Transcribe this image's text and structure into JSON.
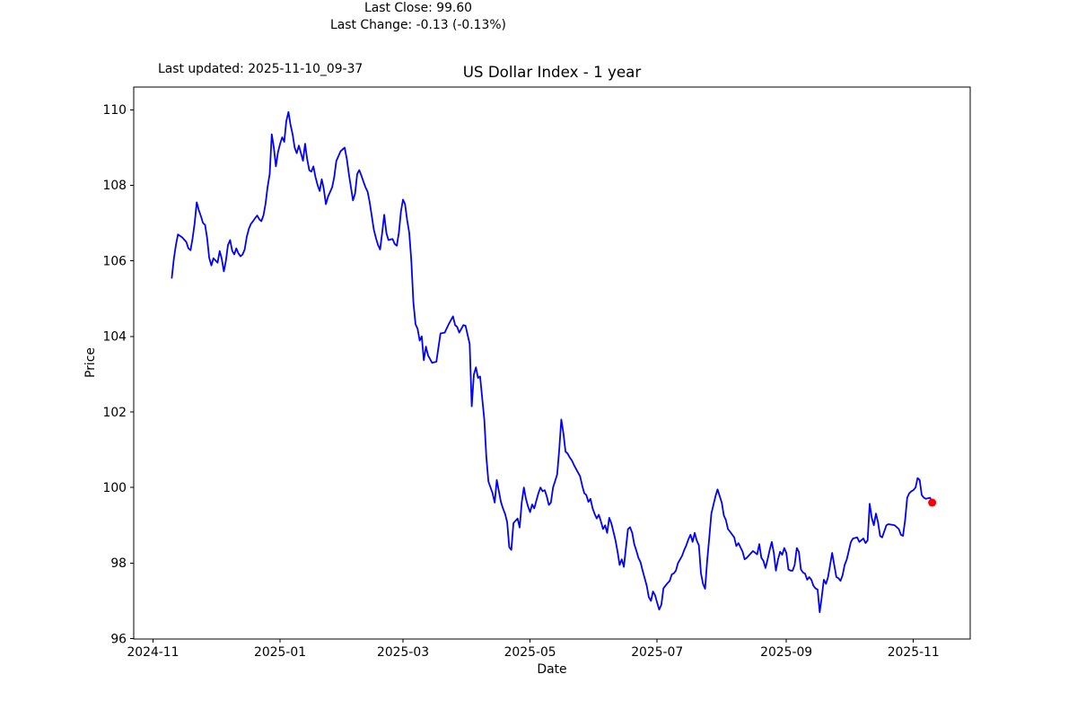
{
  "figure": {
    "last_updated": "Last updated: 2025-11-10_09-37",
    "title": "US Dollar Index - 1 year",
    "annotation_line1": "Last Close: 99.60",
    "annotation_line2": "Last Change: -0.13 (-0.13%)"
  },
  "chart_data": {
    "type": "line",
    "title": "US Dollar Index - 1 year",
    "xlabel": "Date",
    "ylabel": "Price",
    "last_close": 99.6,
    "last_change_text": "-0.13 (-0.13%)",
    "line_color": "#0000ff",
    "marker_color": "#ff0000",
    "axis_color": "#000000",
    "grid": false,
    "start_date": "2024-11-10",
    "x_unit": "days_since_start_date",
    "xlim_days": [
      -18.25,
      383.25
    ],
    "ylim": [
      95.99,
      110.6
    ],
    "yticks": [
      96,
      98,
      100,
      102,
      104,
      106,
      108,
      110
    ],
    "xticks": [
      {
        "day": -9,
        "label": "2024-11"
      },
      {
        "day": 52,
        "label": "2025-01"
      },
      {
        "day": 111,
        "label": "2025-03"
      },
      {
        "day": 172,
        "label": "2025-05"
      },
      {
        "day": 233,
        "label": "2025-07"
      },
      {
        "day": 295,
        "label": "2025-09"
      },
      {
        "day": 356,
        "label": "2025-11"
      }
    ],
    "points": [
      [
        0,
        105.55
      ],
      [
        1,
        106.05
      ],
      [
        2,
        106.42
      ],
      [
        3,
        106.7
      ],
      [
        5,
        106.62
      ],
      [
        7,
        106.5
      ],
      [
        8,
        106.33
      ],
      [
        9,
        106.28
      ],
      [
        10,
        106.6
      ],
      [
        11,
        107.0
      ],
      [
        12,
        107.55
      ],
      [
        13,
        107.34
      ],
      [
        14,
        107.18
      ],
      [
        15,
        107.0
      ],
      [
        16,
        106.95
      ],
      [
        17,
        106.6
      ],
      [
        18,
        106.08
      ],
      [
        19,
        105.88
      ],
      [
        20,
        106.07
      ],
      [
        22,
        105.95
      ],
      [
        23,
        106.26
      ],
      [
        24,
        106.05
      ],
      [
        25,
        105.72
      ],
      [
        26,
        106.0
      ],
      [
        27,
        106.42
      ],
      [
        28,
        106.55
      ],
      [
        29,
        106.27
      ],
      [
        30,
        106.17
      ],
      [
        31,
        106.33
      ],
      [
        32,
        106.2
      ],
      [
        33,
        106.12
      ],
      [
        34,
        106.17
      ],
      [
        35,
        106.3
      ],
      [
        36,
        106.63
      ],
      [
        37,
        106.85
      ],
      [
        38,
        106.98
      ],
      [
        39,
        107.05
      ],
      [
        41,
        107.2
      ],
      [
        42,
        107.1
      ],
      [
        43,
        107.05
      ],
      [
        44,
        107.2
      ],
      [
        45,
        107.5
      ],
      [
        46,
        107.95
      ],
      [
        47,
        108.3
      ],
      [
        48,
        109.35
      ],
      [
        49,
        109.0
      ],
      [
        50,
        108.5
      ],
      [
        51,
        108.87
      ],
      [
        52,
        109.1
      ],
      [
        53,
        109.27
      ],
      [
        54,
        109.15
      ],
      [
        55,
        109.7
      ],
      [
        56,
        109.94
      ],
      [
        57,
        109.6
      ],
      [
        58,
        109.35
      ],
      [
        59,
        109.0
      ],
      [
        60,
        108.85
      ],
      [
        61,
        109.05
      ],
      [
        62,
        108.85
      ],
      [
        63,
        108.65
      ],
      [
        64,
        109.1
      ],
      [
        65,
        108.7
      ],
      [
        66,
        108.4
      ],
      [
        67,
        108.36
      ],
      [
        68,
        108.5
      ],
      [
        69,
        108.22
      ],
      [
        70,
        108.0
      ],
      [
        71,
        107.85
      ],
      [
        72,
        108.16
      ],
      [
        73,
        107.9
      ],
      [
        74,
        107.5
      ],
      [
        75,
        107.7
      ],
      [
        77,
        107.95
      ],
      [
        78,
        108.22
      ],
      [
        79,
        108.64
      ],
      [
        81,
        108.9
      ],
      [
        83,
        109.0
      ],
      [
        84,
        108.7
      ],
      [
        85,
        108.3
      ],
      [
        86,
        107.95
      ],
      [
        87,
        107.6
      ],
      [
        88,
        107.78
      ],
      [
        89,
        108.3
      ],
      [
        90,
        108.4
      ],
      [
        91,
        108.26
      ],
      [
        92,
        108.1
      ],
      [
        93,
        107.95
      ],
      [
        94,
        107.83
      ],
      [
        95,
        107.55
      ],
      [
        97,
        106.83
      ],
      [
        98,
        106.6
      ],
      [
        99,
        106.42
      ],
      [
        100,
        106.3
      ],
      [
        101,
        106.74
      ],
      [
        102,
        107.22
      ],
      [
        103,
        106.74
      ],
      [
        104,
        106.55
      ],
      [
        106,
        106.58
      ],
      [
        107,
        106.45
      ],
      [
        108,
        106.4
      ],
      [
        109,
        106.74
      ],
      [
        110,
        107.3
      ],
      [
        111,
        107.62
      ],
      [
        112,
        107.5
      ],
      [
        113,
        107.07
      ],
      [
        114,
        106.74
      ],
      [
        115,
        106.0
      ],
      [
        116,
        104.9
      ],
      [
        117,
        104.32
      ],
      [
        118,
        104.2
      ],
      [
        119,
        103.89
      ],
      [
        120,
        104.0
      ],
      [
        121,
        103.37
      ],
      [
        122,
        103.73
      ],
      [
        123,
        103.5
      ],
      [
        125,
        103.3
      ],
      [
        127,
        103.33
      ],
      [
        129,
        104.08
      ],
      [
        131,
        104.1
      ],
      [
        133,
        104.33
      ],
      [
        135,
        104.53
      ],
      [
        136,
        104.3
      ],
      [
        137,
        104.25
      ],
      [
        138,
        104.1
      ],
      [
        140,
        104.3
      ],
      [
        141,
        104.28
      ],
      [
        143,
        103.8
      ],
      [
        144,
        102.15
      ],
      [
        145,
        102.99
      ],
      [
        146,
        103.18
      ],
      [
        147,
        102.9
      ],
      [
        148,
        102.94
      ],
      [
        150,
        101.8
      ],
      [
        151,
        100.8
      ],
      [
        152,
        100.16
      ],
      [
        154,
        99.85
      ],
      [
        155,
        99.6
      ],
      [
        156,
        100.2
      ],
      [
        158,
        99.62
      ],
      [
        159,
        99.45
      ],
      [
        160,
        99.3
      ],
      [
        161,
        99.08
      ],
      [
        162,
        98.42
      ],
      [
        163,
        98.35
      ],
      [
        164,
        99.06
      ],
      [
        166,
        99.18
      ],
      [
        167,
        98.94
      ],
      [
        168,
        99.6
      ],
      [
        169,
        100.0
      ],
      [
        170,
        99.7
      ],
      [
        171,
        99.5
      ],
      [
        172,
        99.35
      ],
      [
        173,
        99.55
      ],
      [
        174,
        99.45
      ],
      [
        175,
        99.65
      ],
      [
        176,
        99.85
      ],
      [
        177,
        100.0
      ],
      [
        178,
        99.9
      ],
      [
        179,
        99.93
      ],
      [
        180,
        99.77
      ],
      [
        181,
        99.54
      ],
      [
        182,
        99.6
      ],
      [
        183,
        100.0
      ],
      [
        184,
        100.17
      ],
      [
        185,
        100.35
      ],
      [
        186,
        101.0
      ],
      [
        187,
        101.8
      ],
      [
        188,
        101.43
      ],
      [
        189,
        100.95
      ],
      [
        190,
        100.9
      ],
      [
        191,
        100.8
      ],
      [
        192,
        100.72
      ],
      [
        193,
        100.6
      ],
      [
        194,
        100.5
      ],
      [
        195,
        100.4
      ],
      [
        196,
        100.3
      ],
      [
        197,
        100.05
      ],
      [
        198,
        99.85
      ],
      [
        199,
        99.8
      ],
      [
        200,
        99.62
      ],
      [
        201,
        99.7
      ],
      [
        202,
        99.45
      ],
      [
        203,
        99.3
      ],
      [
        204,
        99.18
      ],
      [
        205,
        99.28
      ],
      [
        206,
        99.1
      ],
      [
        207,
        98.9
      ],
      [
        208,
        99.0
      ],
      [
        209,
        98.8
      ],
      [
        210,
        99.2
      ],
      [
        211,
        99.05
      ],
      [
        212,
        98.83
      ],
      [
        213,
        98.6
      ],
      [
        214,
        98.3
      ],
      [
        215,
        97.95
      ],
      [
        216,
        98.1
      ],
      [
        217,
        97.9
      ],
      [
        218,
        98.4
      ],
      [
        219,
        98.9
      ],
      [
        220,
        98.95
      ],
      [
        221,
        98.8
      ],
      [
        222,
        98.5
      ],
      [
        223,
        98.33
      ],
      [
        224,
        98.14
      ],
      [
        225,
        98.02
      ],
      [
        226,
        97.8
      ],
      [
        227,
        97.6
      ],
      [
        228,
        97.4
      ],
      [
        229,
        97.1
      ],
      [
        230,
        97.0
      ],
      [
        231,
        97.25
      ],
      [
        232,
        97.15
      ],
      [
        233,
        96.95
      ],
      [
        234,
        96.77
      ],
      [
        235,
        96.9
      ],
      [
        236,
        97.33
      ],
      [
        237,
        97.4
      ],
      [
        238,
        97.47
      ],
      [
        239,
        97.53
      ],
      [
        240,
        97.7
      ],
      [
        241,
        97.73
      ],
      [
        242,
        97.8
      ],
      [
        243,
        98.0
      ],
      [
        244,
        98.1
      ],
      [
        245,
        98.2
      ],
      [
        246,
        98.35
      ],
      [
        247,
        98.47
      ],
      [
        248,
        98.63
      ],
      [
        249,
        98.75
      ],
      [
        250,
        98.56
      ],
      [
        251,
        98.8
      ],
      [
        252,
        98.6
      ],
      [
        253,
        98.47
      ],
      [
        254,
        97.73
      ],
      [
        255,
        97.45
      ],
      [
        256,
        97.32
      ],
      [
        257,
        98.05
      ],
      [
        258,
        98.68
      ],
      [
        259,
        99.31
      ],
      [
        261,
        99.77
      ],
      [
        262,
        99.95
      ],
      [
        264,
        99.6
      ],
      [
        265,
        99.26
      ],
      [
        266,
        99.14
      ],
      [
        267,
        98.9
      ],
      [
        268,
        98.83
      ],
      [
        270,
        98.68
      ],
      [
        271,
        98.45
      ],
      [
        272,
        98.53
      ],
      [
        274,
        98.3
      ],
      [
        275,
        98.1
      ],
      [
        276,
        98.14
      ],
      [
        278,
        98.26
      ],
      [
        279,
        98.32
      ],
      [
        281,
        98.23
      ],
      [
        282,
        98.5
      ],
      [
        283,
        98.14
      ],
      [
        284,
        98.06
      ],
      [
        285,
        97.87
      ],
      [
        286,
        98.1
      ],
      [
        287,
        98.35
      ],
      [
        288,
        98.56
      ],
      [
        289,
        98.27
      ],
      [
        290,
        97.8
      ],
      [
        291,
        98.1
      ],
      [
        292,
        98.3
      ],
      [
        293,
        98.22
      ],
      [
        294,
        98.4
      ],
      [
        295,
        98.27
      ],
      [
        296,
        97.83
      ],
      [
        297,
        97.8
      ],
      [
        298,
        97.8
      ],
      [
        299,
        97.95
      ],
      [
        300,
        98.4
      ],
      [
        301,
        98.3
      ],
      [
        302,
        97.83
      ],
      [
        303,
        97.75
      ],
      [
        304,
        97.72
      ],
      [
        305,
        97.56
      ],
      [
        306,
        97.63
      ],
      [
        307,
        97.56
      ],
      [
        308,
        97.4
      ],
      [
        309,
        97.33
      ],
      [
        310,
        97.3
      ],
      [
        311,
        96.7
      ],
      [
        312,
        97.1
      ],
      [
        313,
        97.56
      ],
      [
        314,
        97.45
      ],
      [
        315,
        97.63
      ],
      [
        316,
        97.95
      ],
      [
        317,
        98.27
      ],
      [
        318,
        97.95
      ],
      [
        319,
        97.63
      ],
      [
        320,
        97.6
      ],
      [
        321,
        97.53
      ],
      [
        322,
        97.68
      ],
      [
        323,
        97.95
      ],
      [
        324,
        98.1
      ],
      [
        325,
        98.33
      ],
      [
        326,
        98.56
      ],
      [
        327,
        98.65
      ],
      [
        329,
        98.68
      ],
      [
        330,
        98.56
      ],
      [
        332,
        98.65
      ],
      [
        333,
        98.53
      ],
      [
        334,
        98.6
      ],
      [
        335,
        99.57
      ],
      [
        336,
        99.2
      ],
      [
        337,
        99.0
      ],
      [
        338,
        99.31
      ],
      [
        339,
        99.08
      ],
      [
        340,
        98.72
      ],
      [
        341,
        98.68
      ],
      [
        343,
        99.0
      ],
      [
        344,
        99.03
      ],
      [
        347,
        99.0
      ],
      [
        349,
        98.9
      ],
      [
        350,
        98.75
      ],
      [
        351,
        98.72
      ],
      [
        352,
        99.14
      ],
      [
        353,
        99.73
      ],
      [
        354,
        99.85
      ],
      [
        355,
        99.9
      ],
      [
        356,
        99.93
      ],
      [
        357,
        100.0
      ],
      [
        358,
        100.25
      ],
      [
        359,
        100.2
      ],
      [
        360,
        99.8
      ],
      [
        361,
        99.73
      ],
      [
        362,
        99.7
      ],
      [
        364,
        99.73
      ],
      [
        365,
        99.6
      ]
    ]
  }
}
